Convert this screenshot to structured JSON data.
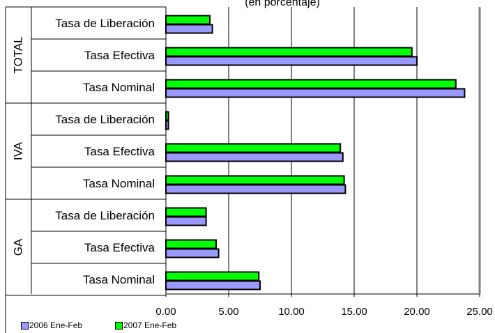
{
  "header_text": "(en porcentaje)",
  "chart_data": {
    "type": "bar",
    "orientation": "horizontal",
    "groups": [
      {
        "name": "TOTAL",
        "categories": [
          "Tasa de Liberación",
          "Tasa Efectiva",
          "Tasa Nominal"
        ]
      },
      {
        "name": "IVA",
        "categories": [
          "Tasa de Liberación",
          "Tasa Efectiva",
          "Tasa Nominal"
        ]
      },
      {
        "name": "GA",
        "categories": [
          "Tasa de Liberación",
          "Tasa Efectiva",
          "Tasa Nominal"
        ]
      }
    ],
    "series": [
      {
        "name": "2006 Ene-Feb",
        "color": "#9999ff",
        "values": [
          3.7,
          20.0,
          23.8,
          0.2,
          14.1,
          14.3,
          3.2,
          4.2,
          7.5
        ]
      },
      {
        "name": "2007 Ene-Feb",
        "color": "#00ff00",
        "values": [
          3.5,
          19.6,
          23.1,
          0.2,
          13.9,
          14.2,
          3.2,
          4.0,
          7.4
        ]
      }
    ],
    "xlim": [
      0,
      25
    ],
    "xticks": [
      "0.00",
      "5.00",
      "10.00",
      "15.00",
      "20.00",
      "25.00"
    ],
    "grid": true,
    "legend_position": "bottom-left",
    "bar_border_color": "#000000",
    "gridline_color": "#000000"
  }
}
